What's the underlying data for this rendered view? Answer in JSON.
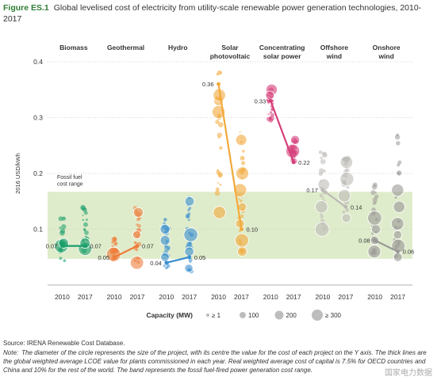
{
  "header": {
    "figure_label": "Figure ES.1",
    "title": "Global levelised cost of electricity from utility-scale renewable power generation technologies, 2010-2017"
  },
  "chart_data": {
    "type": "scatter",
    "ylabel": "2016 USD/kWh",
    "ylim": [
      0,
      0.4
    ],
    "yticks": [
      "0.1",
      "0.2",
      "0.3",
      "0.4"
    ],
    "ytick_values": [
      0.1,
      0.2,
      0.3,
      0.4
    ],
    "grid": true,
    "fossil_band": {
      "label_line1": "Fossil fuel",
      "label_line2": "cost range",
      "min": 0.047,
      "max": 0.167,
      "color": "#dfeccb"
    },
    "year_labels": [
      "2010",
      "2017"
    ],
    "technologies": [
      {
        "name": "Biomass",
        "name2": "",
        "color": "#1a9e6b",
        "v2010": 0.07,
        "v2017": 0.07,
        "label2010": "0.07",
        "label2017": "0.07",
        "range2010": [
          0.04,
          0.13
        ],
        "range2017": [
          0.05,
          0.14
        ],
        "big2010": [
          0.07,
          0.075
        ],
        "big2017": [
          0.065,
          0.075
        ]
      },
      {
        "name": "Geothermal",
        "name2": "",
        "color": "#ee7d3b",
        "v2010": 0.05,
        "v2017": 0.07,
        "label2010": "0.05",
        "label2017": "0.07",
        "range2010": [
          0.045,
          0.085
        ],
        "range2017": [
          0.04,
          0.14
        ],
        "big2010": [
          0.055
        ],
        "big2017": [
          0.04,
          0.09,
          0.13
        ]
      },
      {
        "name": "Hydro",
        "name2": "",
        "color": "#3a8fd0",
        "v2010": 0.04,
        "v2017": 0.05,
        "label2010": "0.04",
        "label2017": "0.05",
        "range2010": [
          0.03,
          0.12
        ],
        "range2017": [
          0.02,
          0.16
        ],
        "big2010": [
          0.05,
          0.08,
          0.1
        ],
        "big2017": [
          0.03,
          0.06,
          0.09,
          0.15
        ]
      },
      {
        "name": "Solar",
        "name2": "photovoltaic",
        "color": "#f2a93b",
        "v2010": 0.36,
        "v2017": 0.1,
        "label2010": "0.36",
        "label2017": "0.10",
        "range2010": [
          0.13,
          0.39
        ],
        "range2017": [
          0.05,
          0.29
        ],
        "big2010": [
          0.31,
          0.33,
          0.34,
          0.13
        ],
        "big2017": [
          0.06,
          0.08,
          0.11,
          0.14,
          0.17,
          0.2,
          0.26
        ]
      },
      {
        "name": "Concentrating",
        "name2": "solar power",
        "color": "#d53e7a",
        "v2010": 0.33,
        "v2017": 0.22,
        "label2010": "0.33",
        "label2017": "0.22",
        "range2010": [
          0.29,
          0.355
        ],
        "range2017": [
          0.22,
          0.26
        ],
        "big2010": [
          0.35,
          0.34
        ],
        "big2017": [
          0.26,
          0.24
        ]
      },
      {
        "name": "Offshore",
        "name2": "wind",
        "color": "#bdbab6",
        "v2010": 0.17,
        "v2017": 0.14,
        "label2010": "0.17",
        "label2017": "0.14",
        "range2010": [
          0.1,
          0.255
        ],
        "range2017": [
          0.11,
          0.23
        ],
        "big2010": [
          0.18,
          0.14,
          0.1
        ],
        "big2017": [
          0.22,
          0.19,
          0.16,
          0.12
        ]
      },
      {
        "name": "Onshore",
        "name2": "wind",
        "color": "#9a9896",
        "v2010": 0.08,
        "v2017": 0.06,
        "label2010": "0.08",
        "label2017": "0.06",
        "range2010": [
          0.05,
          0.185
        ],
        "range2017": [
          0.05,
          0.28
        ],
        "big2010": [
          0.06,
          0.08,
          0.1,
          0.12
        ],
        "big2017": [
          0.05,
          0.07,
          0.09,
          0.11,
          0.14,
          0.17
        ]
      }
    ],
    "capacity_legend": {
      "title": "Capacity (MW)",
      "items": [
        "≥ 1",
        "100",
        "200",
        "≥ 300"
      ]
    }
  },
  "footer": {
    "source": "Source: IRENA Renewable Cost Database.",
    "note_label": "Note:",
    "note": "The diameter of the circle represents the size of the project, with its centre the value for the cost of each project on the Y axis. The thick lines are the global weighted average LCOE value for plants commissioned in each year. Real weighted average cost of capital is 7.5% for OECD countries and China and 10% for the rest of the world. The band represents the fossil fuel-fired power generation cost range."
  },
  "watermark": "国家电力数据"
}
